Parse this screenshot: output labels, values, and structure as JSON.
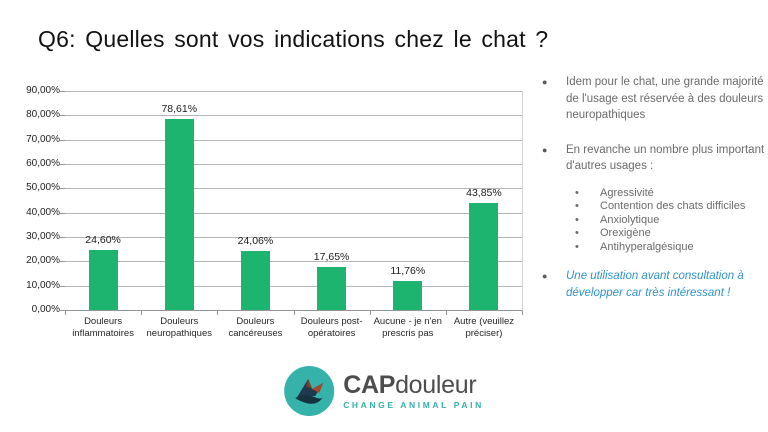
{
  "slide": {
    "title": "Q6: Quelles sont vos indications chez le chat ?",
    "background": "#ffffff"
  },
  "chart_data": {
    "type": "bar",
    "title": "",
    "xlabel": "",
    "ylabel": "",
    "categories": [
      "Douleurs inflammatoires",
      "Douleurs neuropathiques",
      "Douleurs cancéreuses",
      "Douleurs post-opératoires",
      "Aucune - je n'en prescris pas",
      "Autre (veuillez préciser)"
    ],
    "values": [
      24.6,
      78.61,
      24.06,
      17.65,
      11.76,
      43.85
    ],
    "value_labels": [
      "24,60%",
      "78,61%",
      "24,06%",
      "17,65%",
      "11,76%",
      "43,85%"
    ],
    "ylim": [
      0,
      90
    ],
    "ytick_step": 10,
    "ytick_labels": [
      "0,00%",
      "10,00%",
      "20,00%",
      "30,00%",
      "40,00%",
      "50,00%",
      "60,00%",
      "70,00%",
      "80,00%",
      "90,00%"
    ],
    "grid": true,
    "legend": "none",
    "bar_color": "#1db470",
    "gridline_color": "#b5b5b5"
  },
  "notes": {
    "bullets": [
      {
        "text": "Idem pour le chat, une grande majorité de l'usage est réservée à des douleurs neuropathiques",
        "style": "normal"
      },
      {
        "text": "En revanche un nombre plus important d'autres usages :",
        "style": "normal"
      },
      {
        "text": "Une utilisation avant consultation à développer car très intéressant !",
        "style": "highlight"
      }
    ],
    "sub_bullets": [
      "Agressivité",
      "Contention des chats difficiles",
      "Anxiolytique",
      "Orexigène",
      "Antihyperalgésique"
    ],
    "text_color": "#6b6b6b",
    "highlight_color": "#3093cc"
  },
  "logo": {
    "brand_bold": "CAP",
    "brand_rest": "douleur",
    "tagline": "CHANGE ANIMAL PAIN",
    "circle_color": "#35b2aa",
    "tagline_color": "#35b2aa"
  }
}
